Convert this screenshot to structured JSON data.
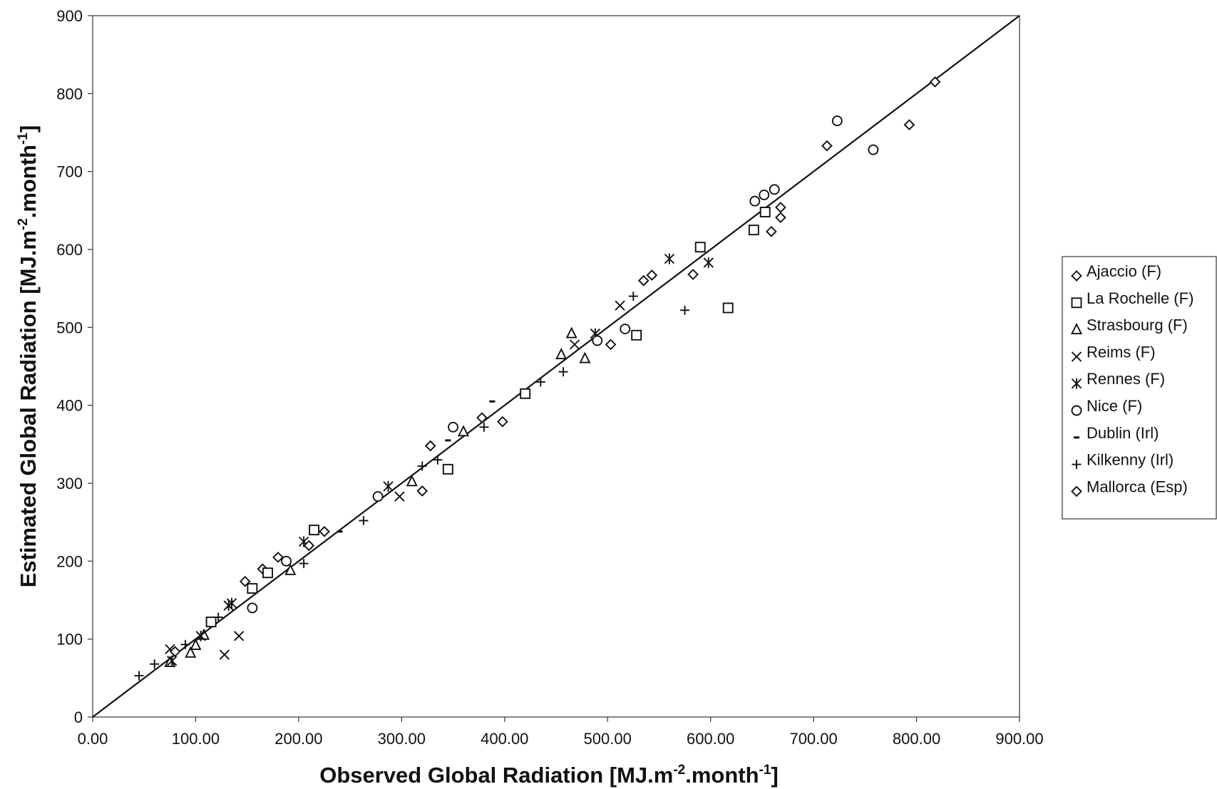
{
  "chart_data": {
    "type": "scatter",
    "title": "",
    "xlabel": {
      "main": "Observed Global Radiation [MJ.m",
      "sup1": "-2",
      "mid": ".month",
      "sup2": "-1",
      "end": "]"
    },
    "ylabel": {
      "main": "Estimated Global Radiation [MJ.m",
      "sup1": "-2",
      "mid": ".month",
      "sup2": "-1",
      "end": "]"
    },
    "xlim": [
      0,
      900
    ],
    "ylim": [
      0,
      900
    ],
    "x_ticks": [
      "0.00",
      "100.00",
      "200.00",
      "300.00",
      "400.00",
      "500.00",
      "600.00",
      "700.00",
      "800.00",
      "900.00"
    ],
    "y_ticks": [
      "0",
      "100",
      "200",
      "300",
      "400",
      "500",
      "600",
      "700",
      "800",
      "900"
    ],
    "grid": false,
    "legend_position": "right",
    "reference_line": {
      "x": [
        0,
        900
      ],
      "y": [
        0,
        900
      ]
    },
    "series": [
      {
        "name": "Ajaccio (F)",
        "marker": "diamond",
        "points": [
          [
            148,
            174
          ],
          [
            165,
            190
          ],
          [
            180,
            205
          ],
          [
            320,
            290
          ],
          [
            328,
            348
          ],
          [
            378,
            384
          ],
          [
            398,
            379
          ],
          [
            503,
            478
          ],
          [
            535,
            560
          ],
          [
            543,
            567
          ],
          [
            583,
            568
          ],
          [
            659,
            623
          ],
          [
            668,
            654
          ],
          [
            668,
            641
          ],
          [
            713,
            733
          ],
          [
            793,
            760
          ],
          [
            818,
            815
          ]
        ]
      },
      {
        "name": "La Rochelle (F)",
        "marker": "square",
        "points": [
          [
            115,
            122
          ],
          [
            155,
            165
          ],
          [
            170,
            185
          ],
          [
            215,
            240
          ],
          [
            345,
            318
          ],
          [
            420,
            415
          ],
          [
            528,
            490
          ],
          [
            590,
            603
          ],
          [
            617,
            525
          ],
          [
            642,
            625
          ],
          [
            653,
            648
          ]
        ]
      },
      {
        "name": "Strasbourg (F)",
        "marker": "triangle",
        "points": [
          [
            75,
            70
          ],
          [
            95,
            82
          ],
          [
            100,
            92
          ],
          [
            108,
            105
          ],
          [
            192,
            188
          ],
          [
            310,
            302
          ],
          [
            360,
            366
          ],
          [
            455,
            465
          ],
          [
            465,
            492
          ],
          [
            478,
            460
          ]
        ]
      },
      {
        "name": "Reims (F)",
        "marker": "x",
        "points": [
          [
            75,
            87
          ],
          [
            128,
            80
          ],
          [
            142,
            104
          ],
          [
            298,
            283
          ],
          [
            468,
            478
          ],
          [
            512,
            528
          ]
        ]
      },
      {
        "name": "Rennes (F)",
        "marker": "asterisk",
        "points": [
          [
            77,
            72
          ],
          [
            105,
            104
          ],
          [
            132,
            143
          ],
          [
            135,
            146
          ],
          [
            205,
            225
          ],
          [
            287,
            296
          ],
          [
            488,
            492
          ],
          [
            560,
            588
          ],
          [
            598,
            583
          ]
        ]
      },
      {
        "name": "Nice (F)",
        "marker": "circle",
        "points": [
          [
            155,
            140
          ],
          [
            188,
            200
          ],
          [
            277,
            283
          ],
          [
            350,
            372
          ],
          [
            490,
            483
          ],
          [
            517,
            498
          ],
          [
            643,
            662
          ],
          [
            652,
            670
          ],
          [
            662,
            677
          ],
          [
            723,
            765
          ],
          [
            758,
            728
          ]
        ]
      },
      {
        "name": "Dublin (Irl)",
        "marker": "dash",
        "points": [
          [
            240,
            238
          ],
          [
            345,
            355
          ],
          [
            388,
            405
          ]
        ]
      },
      {
        "name": "Kilkenny (Irl)",
        "marker": "plus",
        "points": [
          [
            45,
            53
          ],
          [
            60,
            68
          ],
          [
            90,
            93
          ],
          [
            122,
            128
          ],
          [
            205,
            197
          ],
          [
            263,
            252
          ],
          [
            320,
            322
          ],
          [
            335,
            330
          ],
          [
            380,
            372
          ],
          [
            435,
            430
          ],
          [
            457,
            443
          ],
          [
            525,
            540
          ],
          [
            575,
            522
          ]
        ]
      },
      {
        "name": "Mallorca (Esp)",
        "marker": "diamond",
        "points": [
          [
            80,
            84
          ],
          [
            210,
            220
          ],
          [
            225,
            238
          ]
        ]
      }
    ]
  }
}
